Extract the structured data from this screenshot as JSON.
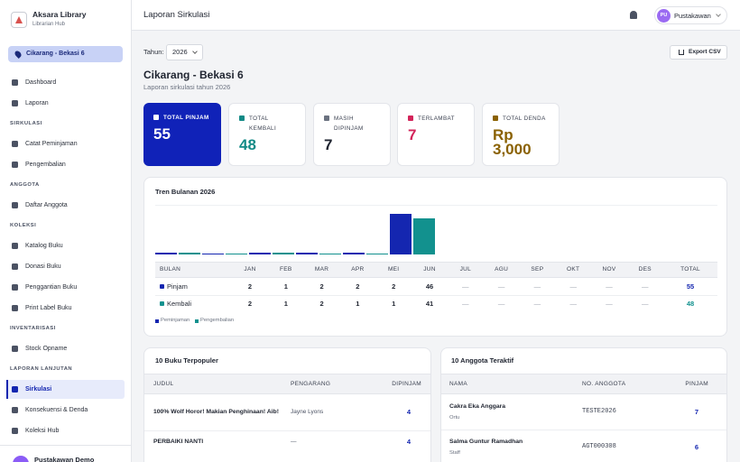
{
  "sidebar": {
    "brand": {
      "title": "Aksara Library",
      "subtitle": "Librarian Hub"
    },
    "branch": "Cikarang - Bekasi 6",
    "nav": [
      {
        "items": [
          {
            "label": "Dashboard"
          },
          {
            "label": "Laporan"
          }
        ]
      },
      {
        "label": "SIRKULASI",
        "items": [
          {
            "label": "Catat Peminjaman"
          },
          {
            "label": "Pengembalian"
          }
        ]
      },
      {
        "label": "ANGGOTA",
        "items": [
          {
            "label": "Daftar Anggota"
          }
        ]
      },
      {
        "label": "KOLEKSI",
        "items": [
          {
            "label": "Katalog Buku"
          },
          {
            "label": "Donasi Buku"
          },
          {
            "label": "Penggantian Buku"
          },
          {
            "label": "Print Label Buku"
          }
        ]
      },
      {
        "label": "INVENTARISASI",
        "items": [
          {
            "label": "Stock Opname"
          }
        ]
      },
      {
        "label": "LAPORAN LANJUTAN",
        "items": [
          {
            "label": "Sirkulasi",
            "active": true
          },
          {
            "label": "Konsekuensi & Denda"
          },
          {
            "label": "Koleksi Hub"
          }
        ]
      }
    ],
    "user": {
      "name": "Pustakawan Demo"
    }
  },
  "header": {
    "title": "Laporan Sirkulasi",
    "user": {
      "initials": "PU",
      "name": "Pustakawan"
    }
  },
  "toolbar": {
    "year_label": "Tahun:",
    "year": "2026",
    "export": "Export CSV"
  },
  "report": {
    "title": "Cikarang - Bekasi 6",
    "subtitle": "Laporan sirkulasi tahun 2026"
  },
  "stats": [
    {
      "label": "TOTAL PINJAM",
      "value": 55,
      "highlight": true
    },
    {
      "label": "TOTAL KEMBALI",
      "value": 48,
      "color": "#128a86"
    },
    {
      "label": "MASIH DIPINJAM",
      "value": 7,
      "color": "#1f2430"
    },
    {
      "label": "TERLAMBAT",
      "value": 7,
      "color": "#d3245a"
    },
    {
      "label": "TOTAL DENDA",
      "value": 3000,
      "value_label": "Rp 3,000",
      "color": "#8a6100"
    }
  ],
  "trend": {
    "title": "Tren Bulanan 2026",
    "header": [
      "BULAN",
      "JAN",
      "FEB",
      "MAR",
      "APR",
      "MEI",
      "JUN",
      "JUL",
      "AGU",
      "SEP",
      "OKT",
      "NOV",
      "DES",
      "TOTAL"
    ],
    "empty": "—",
    "series": [
      {
        "name": "Pinjam",
        "legend": "Peminjaman",
        "color": "#1426b0",
        "values": [
          2,
          1,
          2,
          2,
          2,
          46,
          null,
          null,
          null,
          null,
          null,
          null
        ],
        "total": 55
      },
      {
        "name": "Kembali",
        "legend": "Pengembalian",
        "color": "#12918e",
        "values": [
          2,
          1,
          2,
          1,
          1,
          41,
          null,
          null,
          null,
          null,
          null,
          null
        ],
        "total": 48
      }
    ]
  },
  "popular_books": {
    "title": "10 Buku Terpopuler",
    "columns": [
      "JUDUL",
      "PENGARANG",
      "DIPINJAM"
    ],
    "rows": [
      [
        "100% Wolf Horor! Makian Penghinaan! Aib!",
        "Jayne Lyons",
        4
      ],
      [
        "PERBAIKI NANTI",
        "—",
        4
      ]
    ]
  },
  "active_members": {
    "title": "10 Anggota Teraktif",
    "columns": [
      "NAMA",
      "NO. ANGGOTA",
      "PINJAM"
    ],
    "rows": [
      {
        "name": "Cakra Eka Anggara",
        "role": "Ortu",
        "id": "TESTE2026",
        "count": 7
      },
      {
        "name": "Salma Guntur Ramadhan",
        "role": "Staff",
        "id": "AGT000308",
        "count": 6
      }
    ]
  }
}
